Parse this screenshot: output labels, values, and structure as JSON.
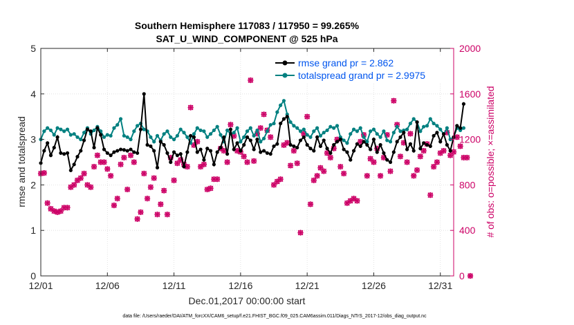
{
  "chart_data": {
    "type": "line",
    "title": [
      "Southern Hemisphere 117083 / 117950 = 99.265%",
      "SAT_U_WIND_COMPONENT @ 525 hPa"
    ],
    "xlabel": "Dec.01,2017 00:00:00 start",
    "ylabel_left": "rmse and totalspread",
    "ylabel_right": "# of obs: o=possible; ×=assimilated",
    "x_range": [
      1,
      32
    ],
    "ylim_left": [
      0,
      5
    ],
    "ylim_right": [
      0,
      2000
    ],
    "xtick_values": [
      1,
      6,
      11,
      16,
      21,
      26,
      31
    ],
    "xtick_labels": [
      "12/01",
      "12/06",
      "12/11",
      "12/16",
      "12/21",
      "12/26",
      "12/31"
    ],
    "ytick_left": [
      "0",
      "1",
      "2",
      "3",
      "4",
      "5"
    ],
    "ytick_right": [
      "0",
      "400",
      "800",
      "1200",
      "1600",
      "2000"
    ],
    "legend_location": "top-right",
    "series": [
      {
        "name": "rmse grand pr = 2.862",
        "color": "#000000",
        "axis": "left",
        "x_start": 1,
        "x_step": 0.25,
        "values": [
          2.48,
          2.75,
          2.92,
          2.65,
          2.82,
          3.05,
          2.7,
          2.68,
          2.7,
          2.32,
          2.45,
          2.62,
          2.75,
          2.98,
          3.22,
          3.18,
          2.82,
          3.25,
          3.1,
          2.78,
          2.7,
          2.65,
          2.72,
          2.75,
          2.78,
          2.77,
          2.75,
          2.78,
          2.72,
          2.7,
          3.22,
          4.0,
          2.88,
          2.85,
          2.75,
          2.38,
          2.95,
          2.88,
          2.7,
          2.5,
          2.72,
          2.65,
          2.68,
          2.4,
          2.72,
          3.08,
          3.05,
          2.72,
          2.78,
          2.55,
          2.8,
          2.75,
          2.45,
          2.72,
          2.82,
          3.05,
          2.68,
          3.22,
          2.78,
          2.92,
          2.75,
          2.88,
          3.05,
          2.98,
          2.78,
          3.0,
          2.72,
          2.75,
          2.7,
          2.68,
          2.85,
          2.9,
          3.35,
          3.45,
          3.5,
          2.88,
          2.85,
          2.82,
          2.98,
          3.05,
          2.88,
          2.8,
          2.75,
          3.05,
          2.85,
          2.98,
          2.8,
          2.7,
          2.88,
          2.95,
          3.0,
          2.78,
          2.72,
          2.55,
          2.75,
          2.9,
          2.85,
          2.95,
          2.88,
          2.78,
          3.0,
          2.72,
          2.88,
          2.7,
          2.55,
          2.5,
          2.72,
          2.95,
          3.05,
          3.15,
          2.78,
          2.9,
          2.75,
          3.38,
          2.8,
          2.92,
          2.88,
          2.85,
          3.08,
          3.15,
          2.95,
          3.12,
          2.88,
          2.75,
          3.05,
          3.3,
          3.25,
          3.78
        ]
      },
      {
        "name": "totalspread grand pr = 2.9975",
        "color": "#008080",
        "axis": "left",
        "x_start": 1,
        "x_step": 0.25,
        "values": [
          3.0,
          3.18,
          3.25,
          3.2,
          3.1,
          3.25,
          3.22,
          3.18,
          3.22,
          3.1,
          3.12,
          3.05,
          3.0,
          3.15,
          3.25,
          3.12,
          3.2,
          3.28,
          3.18,
          3.05,
          3.1,
          3.08,
          3.25,
          3.32,
          3.45,
          3.08,
          3.05,
          3.0,
          3.18,
          3.3,
          3.35,
          3.22,
          3.18,
          3.05,
          2.95,
          3.08,
          2.98,
          3.12,
          3.18,
          3.05,
          3.0,
          3.08,
          3.22,
          3.15,
          3.05,
          2.92,
          3.12,
          3.25,
          3.2,
          3.18,
          3.05,
          3.12,
          3.2,
          3.28,
          3.1,
          2.95,
          3.2,
          3.12,
          3.15,
          3.25,
          2.95,
          3.05,
          3.18,
          3.25,
          3.08,
          3.2,
          2.95,
          3.02,
          3.18,
          3.32,
          3.35,
          3.6,
          3.75,
          3.85,
          3.55,
          3.38,
          3.3,
          3.25,
          3.18,
          3.22,
          3.1,
          3.05,
          3.18,
          3.25,
          3.08,
          3.15,
          3.2,
          3.28,
          3.25,
          3.3,
          3.05,
          2.98,
          2.92,
          3.12,
          3.22,
          3.18,
          3.25,
          3.05,
          2.95,
          3.18,
          3.22,
          3.12,
          3.05,
          3.18,
          2.98,
          2.95,
          3.15,
          3.28,
          3.18,
          3.2,
          3.22,
          3.35,
          3.45,
          3.38,
          3.18,
          3.28,
          3.3,
          3.45,
          3.35,
          3.3,
          3.22,
          3.12,
          3.25,
          3.0,
          3.05,
          3.25,
          3.2,
          3.25
        ]
      },
      {
        "name": "# of obs possible (o)",
        "color": "#CC0066",
        "axis": "right",
        "x_start": 1,
        "x_step": 0.25,
        "values": [
          900,
          905,
          640,
          590,
          570,
          560,
          570,
          600,
          600,
          780,
          800,
          840,
          860,
          900,
          800,
          780,
          960,
          1060,
          1000,
          1000,
          940,
          880,
          620,
          680,
          980,
          1040,
          760,
          1060,
          1000,
          500,
          560,
          900,
          680,
          780,
          860,
          540,
          630,
          750,
          540,
          1040,
          840,
          990,
          1020,
          980,
          960,
          1480,
          1150,
          1180,
          960,
          980,
          760,
          770,
          850,
          850,
          1120,
          1100,
          1000,
          1330,
          1230,
          1100,
          1090,
          1050,
          1000,
          1720,
          1010,
          1250,
          1300,
          1420,
          1280,
          1220,
          800,
          830,
          850,
          1150,
          1170,
          970,
          1100,
          990,
          380,
          1250,
          1400,
          630,
          840,
          880,
          950,
          920,
          1080,
          1040,
          1120,
          1200,
          960,
          900,
          640,
          660,
          680,
          660,
          1180,
          1240,
          880,
          1030,
          1000,
          1120,
          880,
          1040,
          1240,
          920,
          1540,
          1330,
          1050,
          1170,
          1000,
          1250,
          880,
          930,
          1050,
          1100,
          1160,
          710,
          960,
          1000,
          1080,
          1100,
          1260,
          1060,
          1090,
          1220,
          1140,
          1040,
          1040,
          0
        ]
      },
      {
        "name": "# of obs assimilated (×)",
        "color": "#CC0066",
        "axis": "right",
        "x_start": 1,
        "x_step": 0.25,
        "values": [
          900,
          905,
          640,
          590,
          570,
          560,
          570,
          600,
          600,
          780,
          800,
          840,
          860,
          900,
          800,
          780,
          960,
          1060,
          1000,
          1000,
          940,
          880,
          620,
          680,
          980,
          1040,
          760,
          1060,
          1000,
          500,
          560,
          900,
          680,
          780,
          860,
          540,
          630,
          750,
          540,
          1040,
          840,
          990,
          1020,
          980,
          960,
          1480,
          1150,
          1180,
          960,
          980,
          760,
          770,
          850,
          850,
          1120,
          1100,
          1000,
          1330,
          1230,
          1100,
          1090,
          1050,
          1000,
          1720,
          1010,
          1250,
          1300,
          1420,
          1280,
          1220,
          800,
          830,
          850,
          1150,
          1170,
          970,
          1100,
          990,
          380,
          1250,
          1400,
          630,
          840,
          880,
          950,
          920,
          1080,
          1040,
          1120,
          1200,
          960,
          900,
          640,
          660,
          680,
          660,
          1180,
          1240,
          880,
          1030,
          1000,
          1120,
          880,
          1040,
          1240,
          920,
          1540,
          1330,
          1050,
          1170,
          1000,
          1250,
          880,
          930,
          1050,
          1100,
          1160,
          710,
          960,
          1000,
          1080,
          1100,
          1260,
          1060,
          1090,
          1220,
          1140,
          1040,
          1040,
          0
        ]
      }
    ],
    "footnote": "data file: /Users/raeder/DAI/ATM_forcXX/CAM6_setup/f.e21.FHIST_BGC.f09_025.CAM6assim.011/Diags_NTrS_2017-12/obs_diag_output.nc"
  }
}
